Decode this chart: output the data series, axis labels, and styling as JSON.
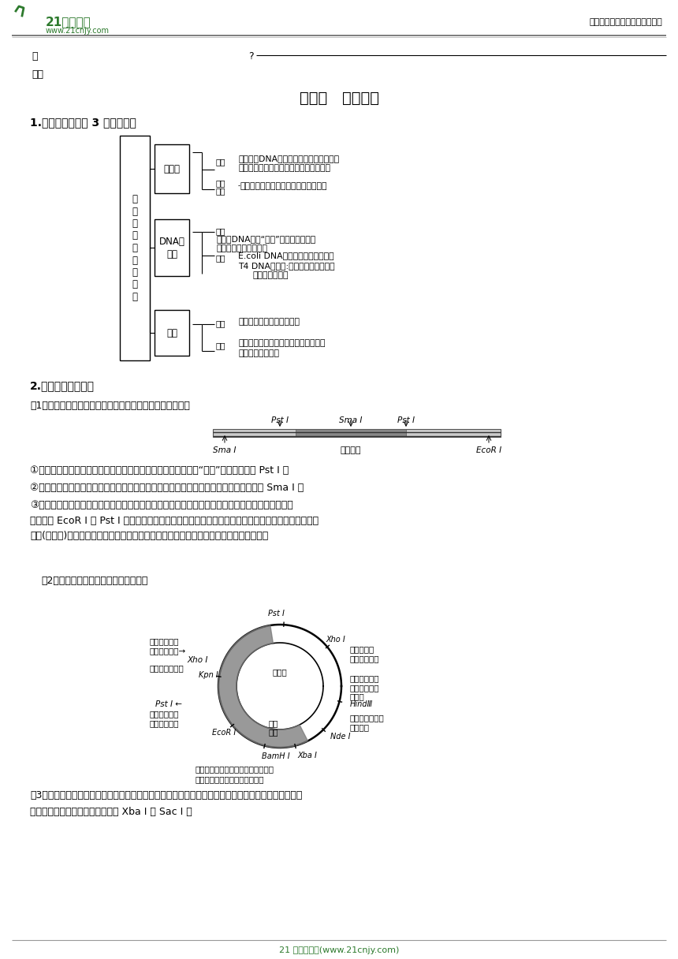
{
  "page_width": 8.6,
  "page_height": 12.16,
  "dpi": 100,
  "bg_color": "#ffffff",
  "header_right_text": "中小学教育资源及组卷应用平台",
  "footer_text": "21 世纪教育网(www.21cnjy.com)",
  "section_title": "考点一   基因工程",
  "sub1_title": "1.基因工程常考的 3 种基本工具",
  "sub2_title": "2.限制酶的选择原则",
  "para1_title": "（1）根据目的基因两端的限制酶切割位点确定限制酶的种类",
  "para2_title": "（2）根据质粒的特点确定限制酶的种类",
  "bullet1": "①应选择切割位点位于目的基因两端的限制酶，以便将目的基因“切出”，可选择图中 Pst I 。",
  "bullet2": "②不能选择切割位点位于目的基因内部的限制酶，以防止破坏目的基因，即不能选择图中 Sma I 。",
  "bullet3": "③为避免目的基因和质粒的自身环化和随意连接，也可使用不同的限制酶切割目的基因和质粒，即可\n选择图中 EcoR I 和 Pst I 两种限制酶，但要确保质粒上也有这两种限制酶或能产生相同鲏性末端的限\n制酶(同尾酶)切割位点，而且这两种限制酶切割后不会破坏标记基因、启动子、终止子等。",
  "para3_text": "（3）根据限制酶的种类和切割位点选择质粒，如下图中甲、乙、丁质粒均不宜被选取，而丙质粒宜被选\n取。（设切割目的基因的限制酶为 Xba I 和 Sac I ）"
}
